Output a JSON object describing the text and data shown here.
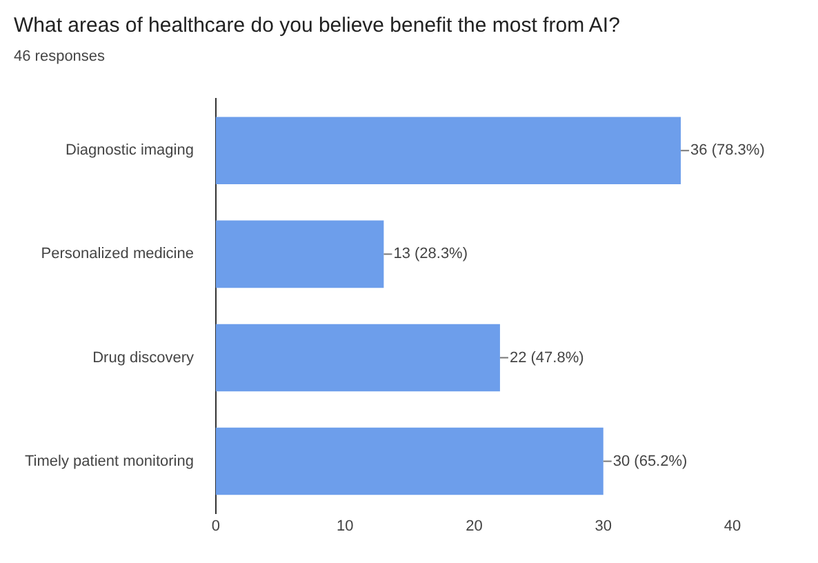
{
  "chart_data": {
    "type": "bar",
    "orientation": "horizontal",
    "title": "What areas of healthcare do you believe benefit the most from AI?",
    "subtitle": "46 responses",
    "categories": [
      "Diagnostic imaging",
      "Personalized medicine",
      "Drug discovery",
      "Timely patient monitoring"
    ],
    "values": [
      36,
      13,
      22,
      30
    ],
    "color": "#6d9eeb",
    "value_labels": [
      "36 (78.3%)",
      "13 (28.3%)",
      "22 (47.8%)",
      "30 (65.2%)"
    ],
    "xlim": [
      0,
      40
    ],
    "xticks": [
      0,
      10,
      20,
      30,
      40
    ],
    "grid": false,
    "legend": false
  }
}
